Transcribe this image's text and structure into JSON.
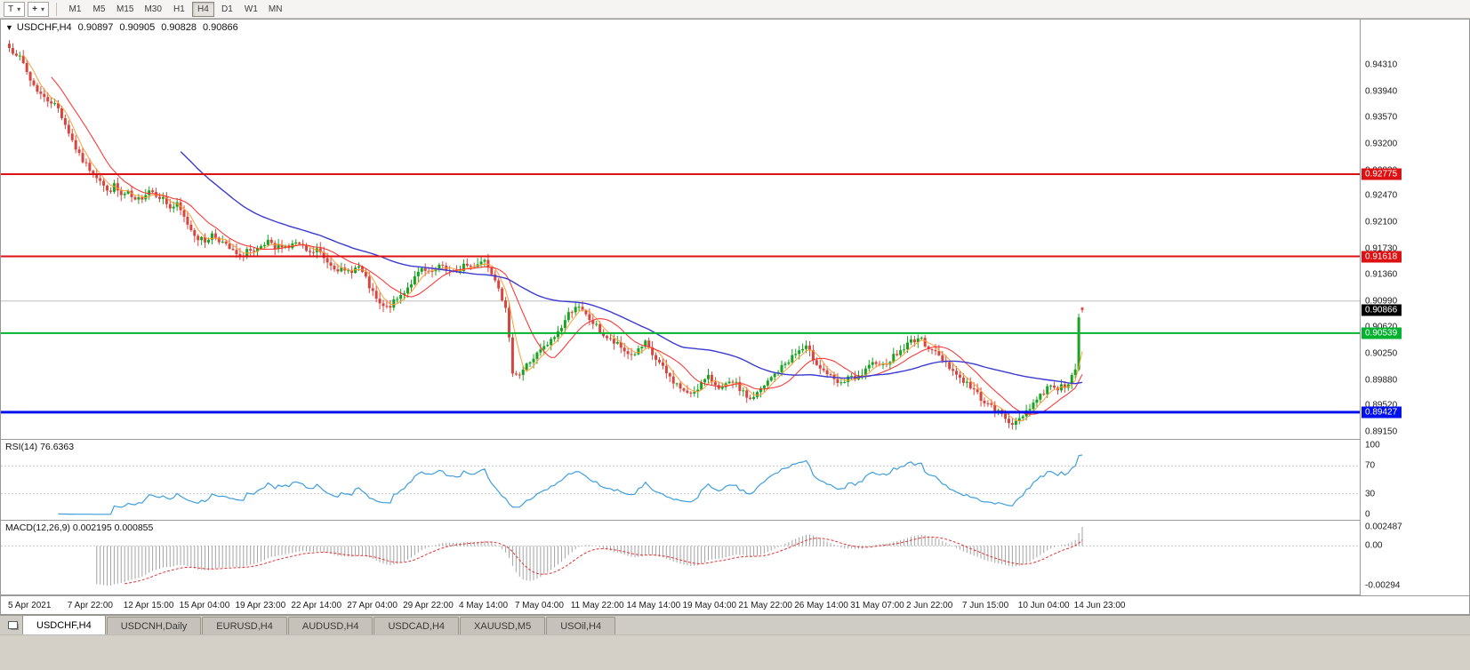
{
  "toolbar": {
    "chart_type_label": "T",
    "timeframes": [
      "M1",
      "M5",
      "M15",
      "M30",
      "H1",
      "H4",
      "D1",
      "W1",
      "MN"
    ],
    "active_timeframe": "H4"
  },
  "chart": {
    "symbol_marker": "▼",
    "title_symbol": "USDCHF,H4",
    "ohlc": {
      "open": "0.90897",
      "high": "0.90905",
      "low": "0.90828",
      "close": "0.90866"
    }
  },
  "rsi": {
    "label": "RSI(14) 76.6363",
    "levels": [
      "100",
      "70",
      "30",
      "0"
    ],
    "value": 76.6363
  },
  "macd": {
    "label": "MACD(12,26,9) 0.002195 0.000855",
    "axis": [
      "0.002487",
      "0.00",
      "-0.00294"
    ]
  },
  "tabs": [
    {
      "label": "USDCHF,H4",
      "active": true
    },
    {
      "label": "USDCNH,Daily",
      "active": false
    },
    {
      "label": "EURUSD,H4",
      "active": false
    },
    {
      "label": "AUDUSD,H4",
      "active": false
    },
    {
      "label": "USDCAD,H4",
      "active": false
    },
    {
      "label": "XAUUSD,M5",
      "active": false
    },
    {
      "label": "USOil,H4",
      "active": false
    }
  ],
  "chart_data": {
    "type": "candlestick",
    "symbol": "USDCHF",
    "timeframe": "H4",
    "title": "USDCHF,H4 0.90897 0.90905 0.90828 0.90866",
    "n_candles": 308,
    "price_range": {
      "top": 0.9495,
      "bottom": 0.8905
    },
    "price_axis_ticks": [
      "0.94310",
      "0.93940",
      "0.93570",
      "0.93200",
      "0.92830",
      "0.92470",
      "0.92100",
      "0.91730",
      "0.91360",
      "0.90990",
      "0.90620",
      "0.90250",
      "0.89880",
      "0.89520",
      "0.89150"
    ],
    "time_axis": [
      {
        "label": "5 Apr 2021",
        "i": 0
      },
      {
        "label": "7 Apr 22:00",
        "i": 17
      },
      {
        "label": "12 Apr 15:00",
        "i": 33
      },
      {
        "label": "15 Apr 04:00",
        "i": 49
      },
      {
        "label": "19 Apr 23:00",
        "i": 65
      },
      {
        "label": "22 Apr 14:00",
        "i": 81
      },
      {
        "label": "27 Apr 04:00",
        "i": 97
      },
      {
        "label": "29 Apr 22:00",
        "i": 113
      },
      {
        "label": "4 May 14:00",
        "i": 129
      },
      {
        "label": "7 May 04:00",
        "i": 145
      },
      {
        "label": "11 May 22:00",
        "i": 161
      },
      {
        "label": "14 May 14:00",
        "i": 177
      },
      {
        "label": "19 May 04:00",
        "i": 193
      },
      {
        "label": "21 May 22:00",
        "i": 209
      },
      {
        "label": "26 May 14:00",
        "i": 225
      },
      {
        "label": "31 May 07:00",
        "i": 241
      },
      {
        "label": "2 Jun 22:00",
        "i": 257
      },
      {
        "label": "7 Jun 15:00",
        "i": 273
      },
      {
        "label": "10 Jun 04:00",
        "i": 289
      },
      {
        "label": "14 Jun 23:00",
        "i": 305
      }
    ],
    "hlines": [
      {
        "price": 0.92775,
        "label": "0.92775",
        "color": "#dd1111",
        "width": 2
      },
      {
        "price": 0.91618,
        "label": "0.91618",
        "color": "#dd1111",
        "width": 2
      },
      {
        "price": 0.9099,
        "label": "",
        "color": "#bdbdbd",
        "width": 1
      },
      {
        "price": 0.90539,
        "label": "0.90539",
        "color": "#00b22d",
        "width": 2
      },
      {
        "price": 0.89427,
        "label": "0.89427",
        "color": "#0011ee",
        "width": 3
      }
    ],
    "current_price": {
      "value": 0.90866,
      "label": "0.90866",
      "color": "#000000"
    },
    "last_candle": [
      0.90897,
      0.90905,
      0.90828,
      0.90866
    ],
    "close_anchors": [
      [
        0,
        0.9455
      ],
      [
        2,
        0.9448
      ],
      [
        4,
        0.9432
      ],
      [
        6,
        0.941
      ],
      [
        8,
        0.9396
      ],
      [
        10,
        0.9384
      ],
      [
        12,
        0.938
      ],
      [
        14,
        0.937
      ],
      [
        16,
        0.9348
      ],
      [
        18,
        0.9325
      ],
      [
        20,
        0.9303
      ],
      [
        22,
        0.929
      ],
      [
        24,
        0.928
      ],
      [
        26,
        0.927
      ],
      [
        28,
        0.9252
      ],
      [
        30,
        0.9261
      ],
      [
        32,
        0.9247
      ],
      [
        34,
        0.925
      ],
      [
        36,
        0.9238
      ],
      [
        38,
        0.9246
      ],
      [
        40,
        0.9256
      ],
      [
        42,
        0.925
      ],
      [
        44,
        0.9243
      ],
      [
        46,
        0.923
      ],
      [
        48,
        0.9234
      ],
      [
        50,
        0.9216
      ],
      [
        52,
        0.92
      ],
      [
        54,
        0.9188
      ],
      [
        56,
        0.9183
      ],
      [
        58,
        0.9193
      ],
      [
        60,
        0.9186
      ],
      [
        62,
        0.9176
      ],
      [
        64,
        0.9168
      ],
      [
        66,
        0.9159
      ],
      [
        68,
        0.9172
      ],
      [
        70,
        0.9165
      ],
      [
        72,
        0.9173
      ],
      [
        74,
        0.9181
      ],
      [
        76,
        0.9172
      ],
      [
        78,
        0.9179
      ],
      [
        80,
        0.9175
      ],
      [
        82,
        0.9181
      ],
      [
        84,
        0.9173
      ],
      [
        86,
        0.9165
      ],
      [
        88,
        0.9172
      ],
      [
        90,
        0.9159
      ],
      [
        92,
        0.9151
      ],
      [
        94,
        0.9145
      ],
      [
        96,
        0.9139
      ],
      [
        98,
        0.9143
      ],
      [
        100,
        0.9147
      ],
      [
        102,
        0.9129
      ],
      [
        104,
        0.9109
      ],
      [
        106,
        0.9093
      ],
      [
        108,
        0.9089
      ],
      [
        110,
        0.9097
      ],
      [
        112,
        0.9107
      ],
      [
        114,
        0.9119
      ],
      [
        116,
        0.9131
      ],
      [
        118,
        0.9143
      ],
      [
        120,
        0.9137
      ],
      [
        122,
        0.9143
      ],
      [
        124,
        0.9149
      ],
      [
        126,
        0.9141
      ],
      [
        128,
        0.9137
      ],
      [
        130,
        0.9151
      ],
      [
        132,
        0.9147
      ],
      [
        134,
        0.9153
      ],
      [
        136,
        0.9157
      ],
      [
        138,
        0.9141
      ],
      [
        140,
        0.9121
      ],
      [
        142,
        0.9086
      ],
      [
        144,
        0.9001
      ],
      [
        146,
        0.8996
      ],
      [
        148,
        0.9009
      ],
      [
        150,
        0.9019
      ],
      [
        152,
        0.9029
      ],
      [
        154,
        0.9037
      ],
      [
        156,
        0.9049
      ],
      [
        158,
        0.9063
      ],
      [
        160,
        0.9081
      ],
      [
        162,
        0.9093
      ],
      [
        164,
        0.9083
      ],
      [
        166,
        0.9073
      ],
      [
        168,
        0.9063
      ],
      [
        170,
        0.9051
      ],
      [
        172,
        0.9043
      ],
      [
        174,
        0.9037
      ],
      [
        176,
        0.9029
      ],
      [
        178,
        0.9023
      ],
      [
        180,
        0.9029
      ],
      [
        182,
        0.9039
      ],
      [
        184,
        0.9023
      ],
      [
        186,
        0.9011
      ],
      [
        188,
        0.8997
      ],
      [
        190,
        0.8986
      ],
      [
        192,
        0.8977
      ],
      [
        194,
        0.8967
      ],
      [
        196,
        0.8973
      ],
      [
        198,
        0.8983
      ],
      [
        200,
        0.8991
      ],
      [
        202,
        0.8983
      ],
      [
        204,
        0.8976
      ],
      [
        206,
        0.8983
      ],
      [
        208,
        0.8981
      ],
      [
        210,
        0.8969
      ],
      [
        212,
        0.8961
      ],
      [
        214,
        0.8969
      ],
      [
        216,
        0.8979
      ],
      [
        218,
        0.8991
      ],
      [
        220,
        0.9001
      ],
      [
        222,
        0.9011
      ],
      [
        224,
        0.9021
      ],
      [
        226,
        0.9029
      ],
      [
        228,
        0.9033
      ],
      [
        230,
        0.9019
      ],
      [
        232,
        0.9006
      ],
      [
        234,
        0.8997
      ],
      [
        236,
        0.8986
      ],
      [
        238,
        0.8981
      ],
      [
        240,
        0.8993
      ],
      [
        242,
        0.8987
      ],
      [
        244,
        0.8996
      ],
      [
        246,
        0.9005
      ],
      [
        248,
        0.9015
      ],
      [
        250,
        0.9009
      ],
      [
        252,
        0.9017
      ],
      [
        254,
        0.9025
      ],
      [
        256,
        0.9033
      ],
      [
        258,
        0.9043
      ],
      [
        260,
        0.9047
      ],
      [
        262,
        0.9039
      ],
      [
        264,
        0.9031
      ],
      [
        266,
        0.9021
      ],
      [
        268,
        0.9013
      ],
      [
        270,
        0.9001
      ],
      [
        272,
        0.8991
      ],
      [
        274,
        0.8983
      ],
      [
        276,
        0.8973
      ],
      [
        278,
        0.8963
      ],
      [
        280,
        0.8953
      ],
      [
        282,
        0.8946
      ],
      [
        284,
        0.8939
      ],
      [
        286,
        0.8931
      ],
      [
        288,
        0.8926
      ],
      [
        290,
        0.8939
      ],
      [
        292,
        0.8951
      ],
      [
        294,
        0.8961
      ],
      [
        296,
        0.8971
      ],
      [
        298,
        0.8983
      ],
      [
        300,
        0.8976
      ],
      [
        302,
        0.8981
      ],
      [
        304,
        0.8991
      ],
      [
        305,
        0.8999
      ],
      [
        306,
        0.9076
      ],
      [
        307,
        0.90866
      ]
    ],
    "indicators": {
      "rsi": {
        "period": 14,
        "current": 76.6363,
        "levels": [
          100,
          70,
          30,
          0
        ]
      },
      "macd": {
        "fast": 12,
        "slow": 26,
        "signal": 9,
        "current_macd": 0.002195,
        "current_signal": 0.000855,
        "axis_max": 0.002487,
        "axis_min": -0.00294
      },
      "moving_averages": [
        {
          "period": 5,
          "color": "#ff9c33"
        },
        {
          "period": 13,
          "color": "#ff2a2a"
        },
        {
          "period": 50,
          "color": "#3b3bd1"
        }
      ]
    },
    "colors": {
      "up": "#18a321",
      "down": "#d6453f",
      "ma_fast": "#ff9c33",
      "ma_mid": "#ff2a2a",
      "ma_slow": "#3b3bd1",
      "rsi": "#3d9fdd",
      "macd_hist": "#a3a3a3",
      "macd_signal": "#e23333",
      "grid": "#bdbdbd"
    }
  }
}
